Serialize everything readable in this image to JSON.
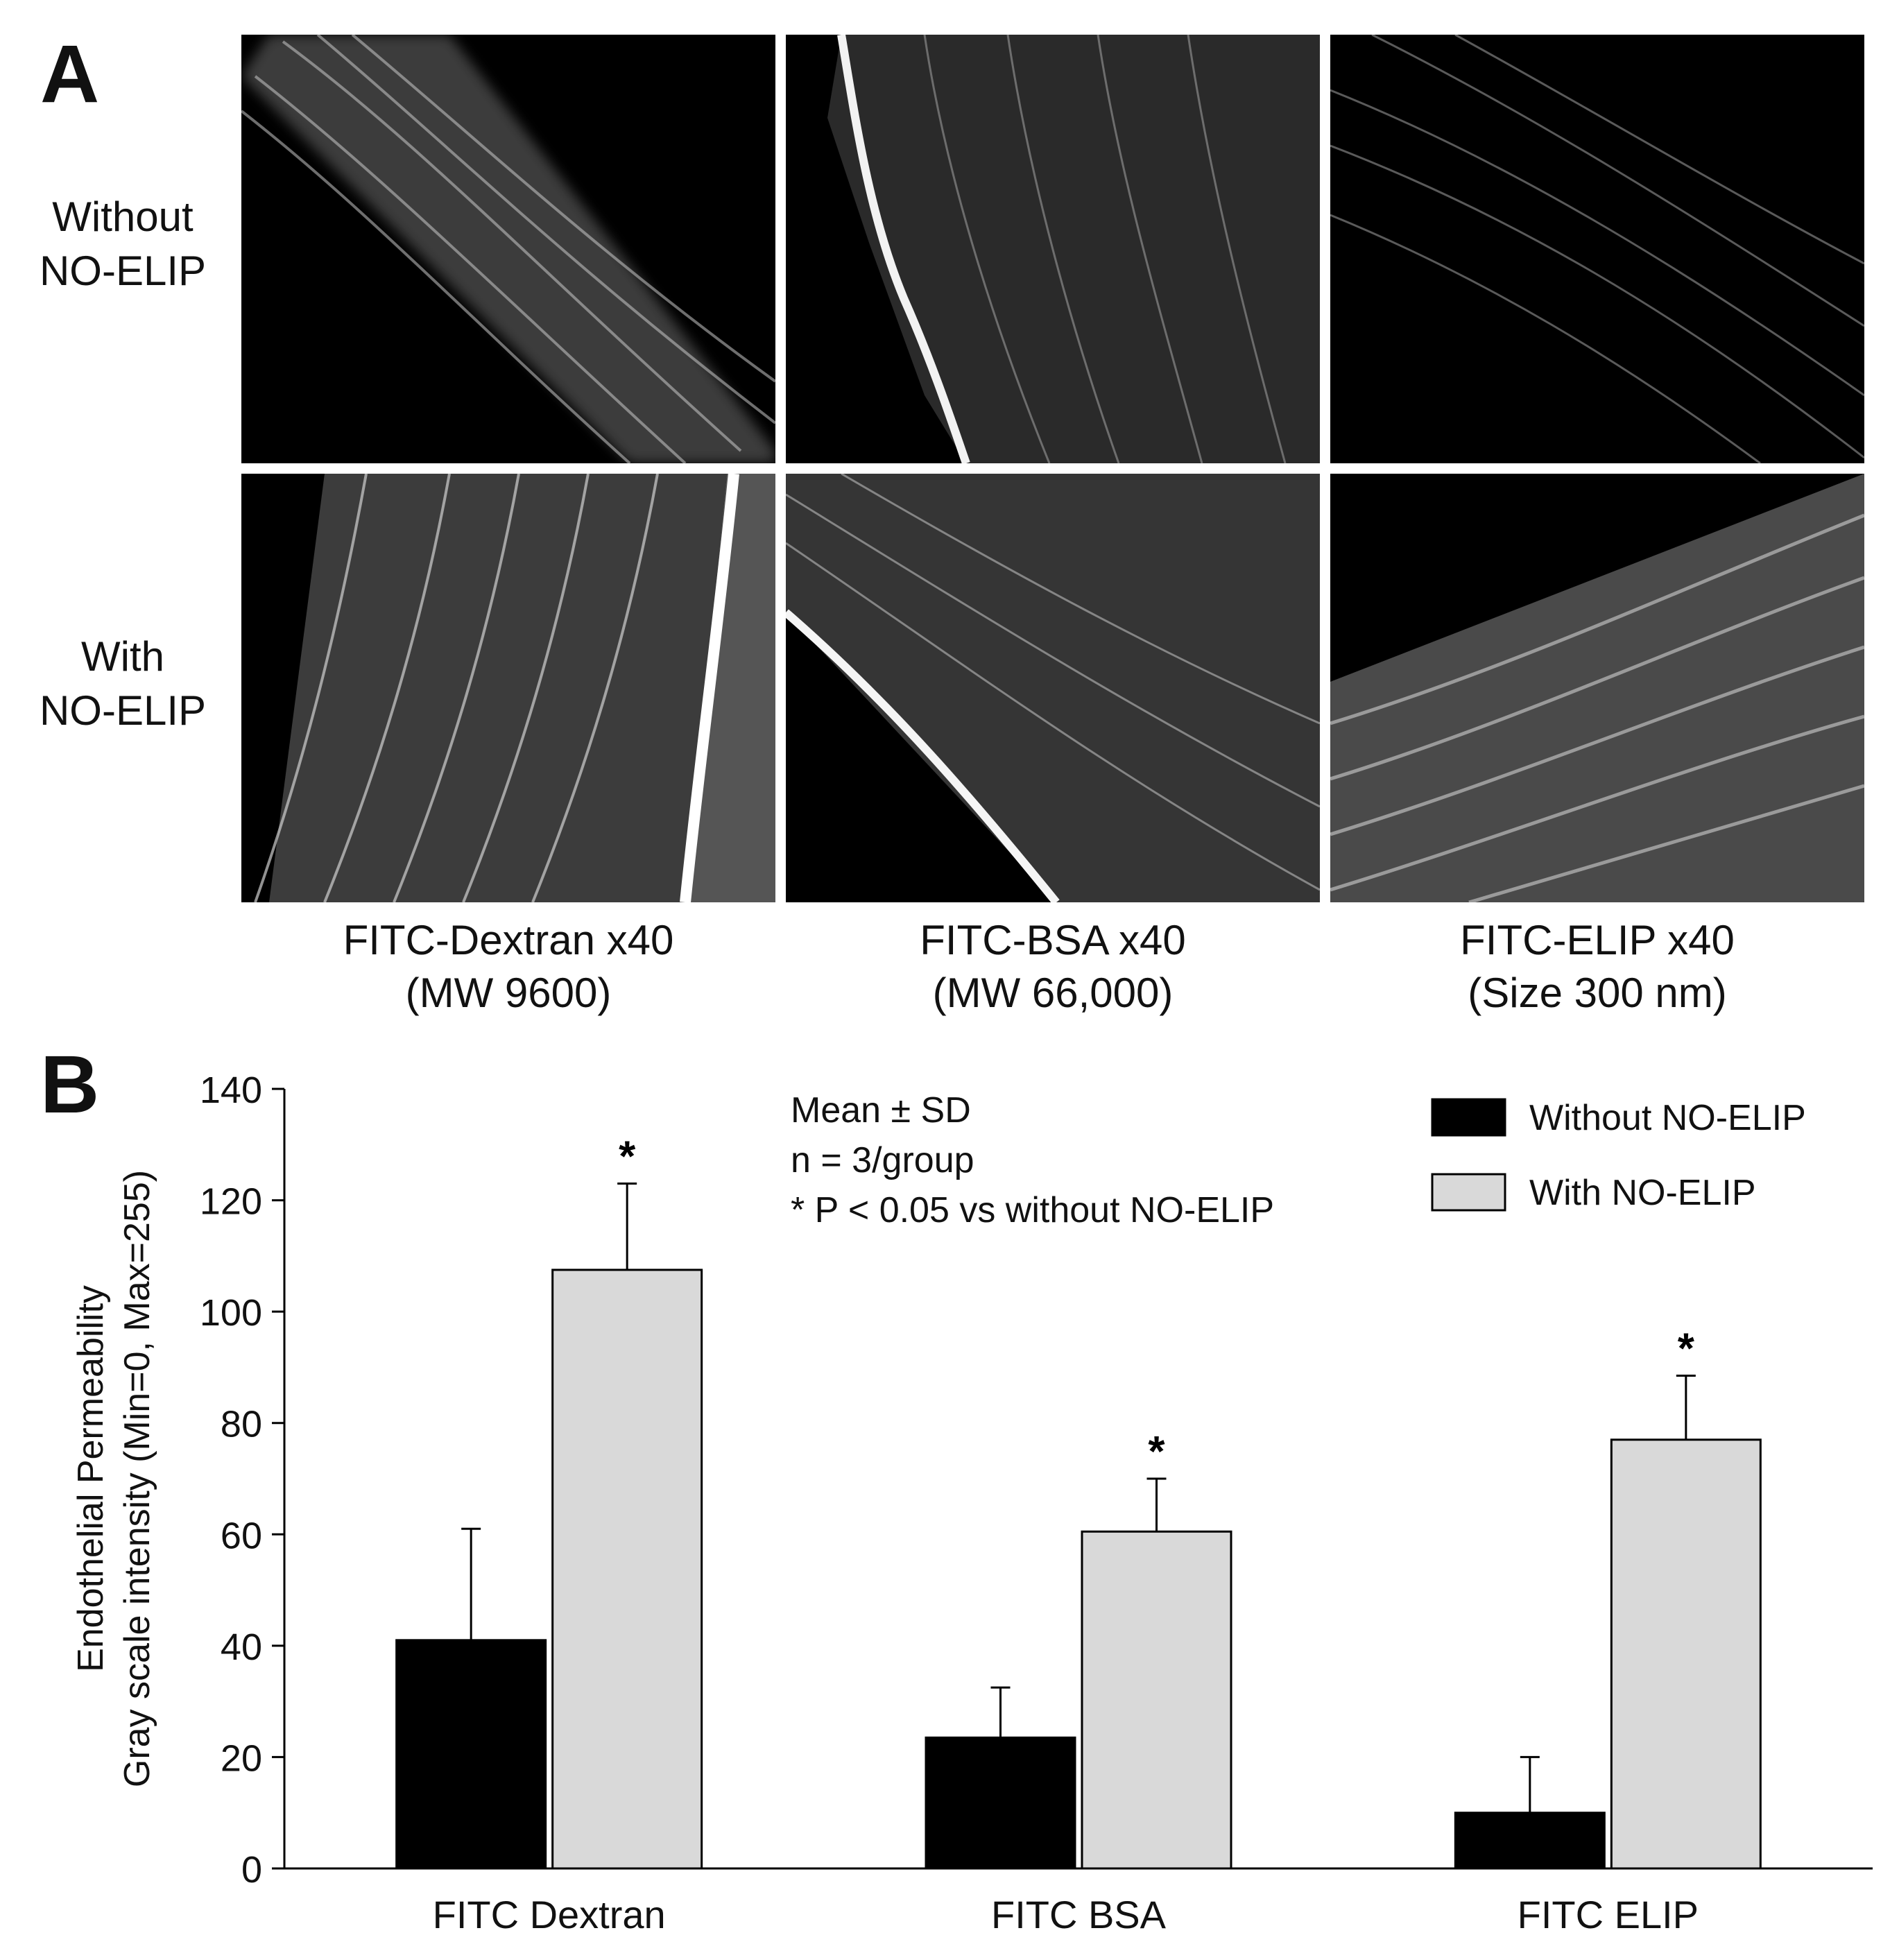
{
  "panel_a": {
    "letter": "A",
    "row_labels": [
      {
        "line1": "Without",
        "line2": "NO-ELIP"
      },
      {
        "line1": "With",
        "line2": "NO-ELIP"
      }
    ],
    "column_labels": [
      {
        "line1": "FITC-Dextran  x40",
        "line2": "(MW 9600)"
      },
      {
        "line1": "FITC-BSA x40",
        "line2": "(MW 66,000)"
      },
      {
        "line1": "FITC-ELIP  x40",
        "line2": "(Size 300 nm)"
      }
    ]
  },
  "panel_b": {
    "letter": "B",
    "stats_note": [
      "Mean ± SD",
      "n = 3/group",
      "* P < 0.05 vs without NO-ELIP"
    ]
  },
  "chart_data": {
    "type": "bar",
    "title": "",
    "ylabel": [
      "Endothelial Permeability",
      "Gray scale intensity (Min=0, Max=255)"
    ],
    "xlabel": "",
    "categories": [
      "FITC Dextran",
      "FITC BSA",
      "FITC ELIP"
    ],
    "ylim": [
      0,
      140
    ],
    "yticks": [
      0,
      20,
      40,
      60,
      80,
      100,
      120,
      140
    ],
    "series": [
      {
        "name": "Without NO-ELIP",
        "color": "#000000",
        "values": [
          41,
          23.5,
          10
        ],
        "sd": [
          20,
          9,
          10
        ]
      },
      {
        "name": "With NO-ELIP",
        "color": "#d9d9d9",
        "values": [
          107.5,
          60.5,
          77
        ],
        "sd": [
          15.5,
          9.5,
          11.5
        ]
      }
    ],
    "significance": [
      "*",
      "*",
      "*"
    ],
    "legend_position": "top-right",
    "grid": false
  }
}
